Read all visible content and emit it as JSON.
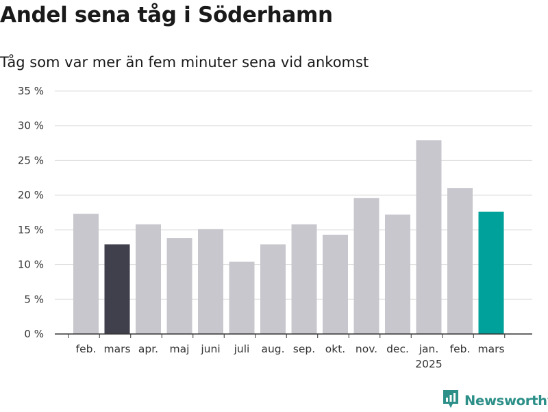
{
  "header": {
    "title": "Andel sena tåg i Söderhamn",
    "subtitle": "Tåg som var mer än fem minuter sena vid ankomst"
  },
  "chart_data": {
    "type": "bar",
    "title": "Andel sena tåg i Söderhamn",
    "subtitle": "Tåg som var mer än fem minuter sena vid ankomst",
    "categories": [
      "feb.",
      "mars",
      "apr.",
      "maj",
      "juni",
      "juli",
      "aug.",
      "sep.",
      "okt.",
      "nov.",
      "dec.",
      "jan.",
      "feb.",
      "mars"
    ],
    "year_labels": [
      "",
      "",
      "",
      "",
      "",
      "",
      "",
      "",
      "",
      "",
      "",
      "2025",
      "",
      ""
    ],
    "values": [
      17.3,
      12.9,
      15.8,
      13.8,
      15.1,
      10.4,
      12.9,
      15.8,
      14.3,
      19.6,
      17.2,
      27.9,
      21.0,
      17.6
    ],
    "bar_colors": [
      "#c8c7cd",
      "#403f4c",
      "#c8c7cd",
      "#c8c7cd",
      "#c8c7cd",
      "#c8c7cd",
      "#c8c7cd",
      "#c8c7cd",
      "#c8c7cd",
      "#c8c7cd",
      "#c8c7cd",
      "#c8c7cd",
      "#c8c7cd",
      "#00a19a"
    ],
    "ylim": [
      0,
      35
    ],
    "yticks": [
      0,
      5,
      10,
      15,
      20,
      25,
      30,
      35
    ],
    "ytick_labels": [
      "0 %",
      "5 %",
      "10 %",
      "15 %",
      "20 %",
      "25 %",
      "30 %",
      "35 %"
    ],
    "xlabel": "",
    "ylabel": "",
    "grid": true,
    "legend": "none"
  },
  "brand": {
    "name": "Newsworthy",
    "color": "#2c8f88"
  },
  "colors": {
    "grid": "#dddddd",
    "axis": "#333333",
    "text": "#1a1a1a"
  }
}
